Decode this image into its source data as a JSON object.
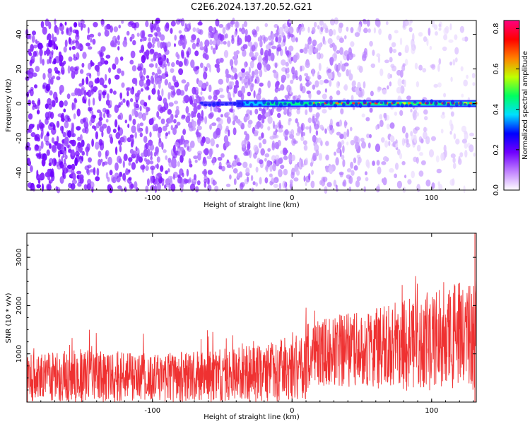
{
  "title": "C2E6.2024.137.20.52.G21",
  "chart_data": [
    {
      "type": "heatmap",
      "xlabel": "Height of straight line (km)",
      "ylabel": "Frequency (Hz)",
      "xlim": [
        -190,
        132
      ],
      "ylim": [
        -50,
        48
      ],
      "xticks": [
        -100,
        0,
        100
      ],
      "yticks": [
        -40,
        -20,
        0,
        20,
        40
      ],
      "colorbar": {
        "label": "Normalized spectral amplitude",
        "range": [
          0.0,
          0.84
        ],
        "ticks": [
          0.0,
          0.2,
          0.4,
          0.6,
          0.8
        ],
        "colors": [
          "#ffffff",
          "#c080ff",
          "#7000ff",
          "#0000ff",
          "#00e0ff",
          "#00ff60",
          "#c0ff00",
          "#ff8000",
          "#ff0000",
          "#ff0080"
        ]
      },
      "signal_line": {
        "frequency_hz": 0,
        "start_height_km": -65,
        "strong_from_km": 15
      }
    },
    {
      "type": "line",
      "xlabel": "Height of straight line (km)",
      "ylabel": "SNR (10 * v/v)",
      "xlim": [
        -190,
        132
      ],
      "ylim": [
        0,
        3500
      ],
      "xticks": [
        -100,
        0,
        100
      ],
      "yticks": [
        1000,
        2000,
        3000
      ],
      "color": "#ef3131",
      "envelope": [
        {
          "x": -190,
          "low": 0,
          "high": 1000
        },
        {
          "x": -150,
          "low": 0,
          "high": 1100
        },
        {
          "x": -100,
          "low": 0,
          "high": 1000
        },
        {
          "x": -50,
          "low": 0,
          "high": 1100
        },
        {
          "x": -20,
          "low": 0,
          "high": 1200
        },
        {
          "x": 10,
          "low": 50,
          "high": 1500
        },
        {
          "x": 12,
          "low": 350,
          "high": 1700
        },
        {
          "x": 50,
          "low": 300,
          "high": 1900
        },
        {
          "x": 100,
          "low": 200,
          "high": 2300
        },
        {
          "x": 132,
          "low": 200,
          "high": 2600
        }
      ]
    }
  ]
}
